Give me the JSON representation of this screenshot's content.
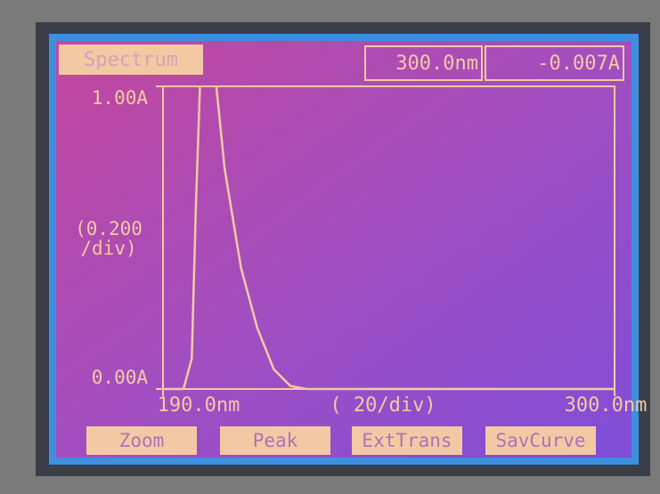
{
  "chart_data": {
    "type": "line",
    "title": "Spectrum",
    "readouts": [
      "300.0nm",
      "-0.007A"
    ],
    "x": [
      190,
      195,
      197,
      198,
      199,
      200,
      203,
      205,
      209,
      213,
      217,
      221,
      225,
      300
    ],
    "values": [
      0,
      0,
      0.1,
      0.6,
      1.0,
      null,
      1.0,
      0.73,
      0.4,
      0.2,
      0.065,
      0.01,
      0,
      0
    ],
    "color": "#f3c9a4",
    "xlim": [
      190,
      300
    ],
    "ylim": [
      0,
      1
    ],
    "xticks": [
      {
        "value": 190,
        "label": "190.0nm"
      },
      {
        "value": 300,
        "label": "300.0nm"
      }
    ],
    "yticks": [
      {
        "value": 0,
        "label": "0.00A"
      },
      {
        "value": 1,
        "label": "1.00A"
      }
    ],
    "annotations": [
      "(0.200",
      "/div)",
      "( 20/div)"
    ]
  },
  "buttons": [
    "Zoom",
    "Peak",
    "ExtTrans",
    "SavCurve"
  ]
}
